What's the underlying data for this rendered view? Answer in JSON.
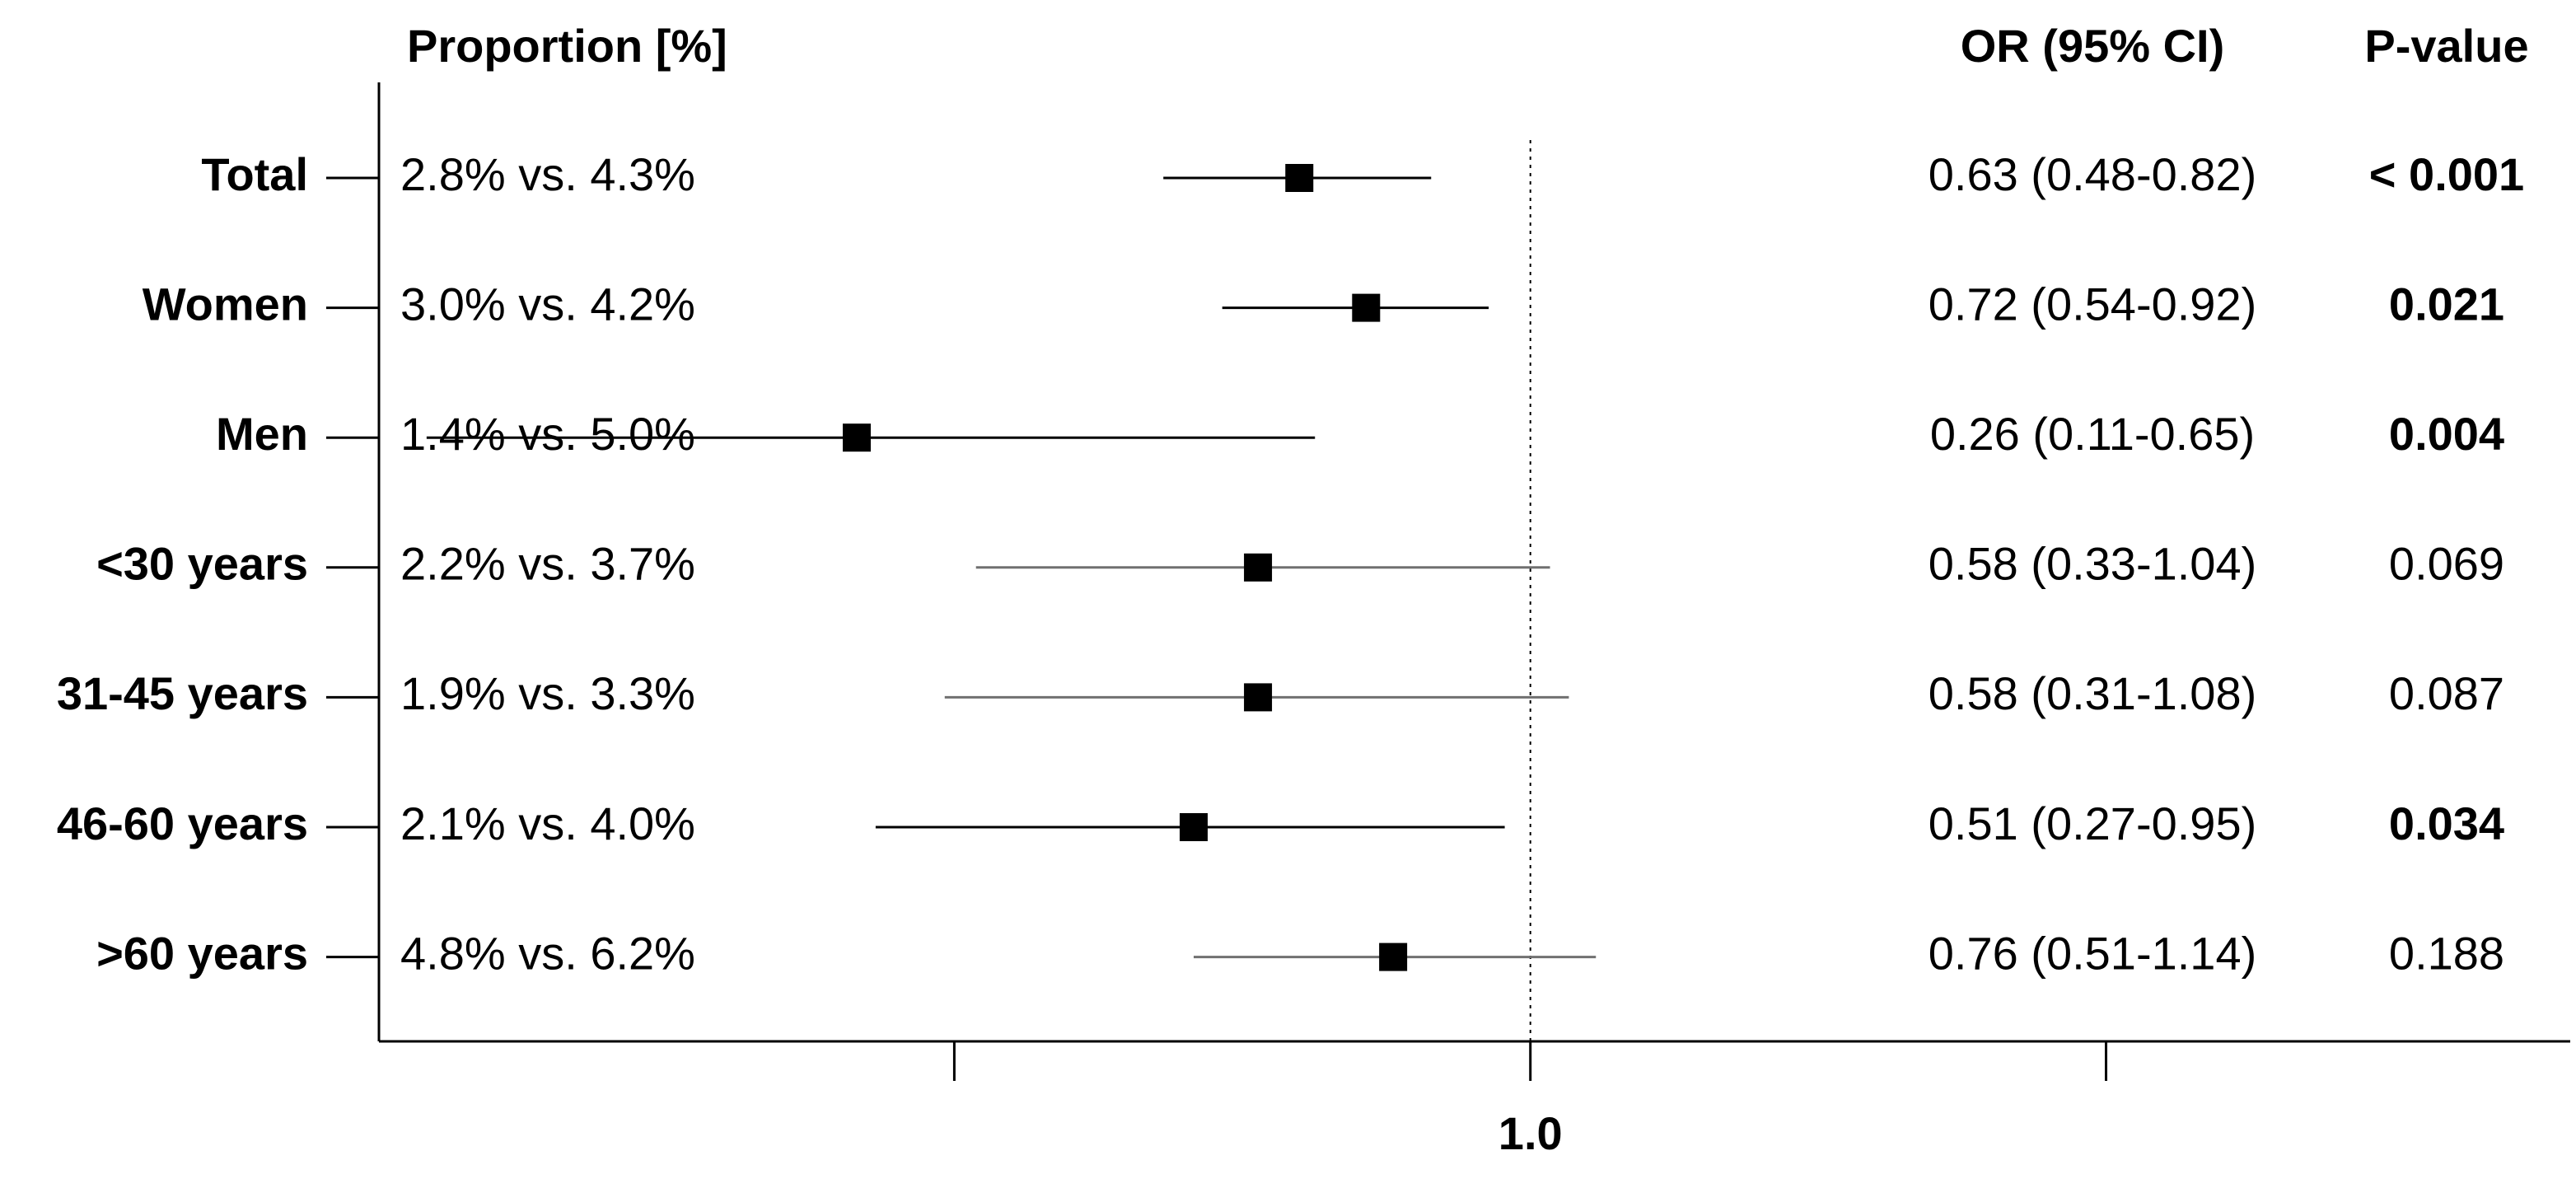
{
  "chart_data": {
    "type": "forest",
    "headers": {
      "proportion": "Proportion [%]",
      "or": "OR (95% CI)",
      "p": "P-value"
    },
    "xscale": "log",
    "xlim": [
      0.1,
      8
    ],
    "xticks": [
      {
        "value": 1,
        "label": "1.0"
      }
    ],
    "xminor_ticks": [
      0.316,
      3.162
    ],
    "reference_line": 1,
    "color": "#000000",
    "nonsignificant_color": "#707070",
    "rows": [
      {
        "label": "Total",
        "proportion": "2.8% vs. 4.3%",
        "or": 0.63,
        "lo": 0.48,
        "hi": 0.82,
        "or_label": "0.63 (0.48-0.82)",
        "p": "< 0.001",
        "significant": true
      },
      {
        "label": "Women",
        "proportion": "3.0% vs. 4.2%",
        "or": 0.72,
        "lo": 0.54,
        "hi": 0.92,
        "or_label": "0.72 (0.54-0.92)",
        "p": "0.021",
        "significant": true
      },
      {
        "label": "Men",
        "proportion": "1.4% vs. 5.0%",
        "or": 0.26,
        "lo": 0.11,
        "hi": 0.65,
        "or_label": "0.26 (0.11-0.65)",
        "p": "0.004",
        "significant": true
      },
      {
        "label": "<30 years",
        "proportion": "2.2% vs. 3.7%",
        "or": 0.58,
        "lo": 0.33,
        "hi": 1.04,
        "or_label": "0.58 (0.33-1.04)",
        "p": "0.069",
        "significant": false
      },
      {
        "label": "31-45 years",
        "proportion": "1.9% vs. 3.3%",
        "or": 0.58,
        "lo": 0.31,
        "hi": 1.08,
        "or_label": "0.58 (0.31-1.08)",
        "p": "0.087",
        "significant": false
      },
      {
        "label": "46-60 years",
        "proportion": "2.1% vs. 4.0%",
        "or": 0.51,
        "lo": 0.27,
        "hi": 0.95,
        "or_label": "0.51 (0.27-0.95)",
        "p": "0.034",
        "significant": true
      },
      {
        "label": ">60 years",
        "proportion": "4.8% vs. 6.2%",
        "or": 0.76,
        "lo": 0.51,
        "hi": 1.14,
        "or_label": "0.76 (0.51-1.14)",
        "p": "0.188",
        "significant": false
      }
    ]
  }
}
